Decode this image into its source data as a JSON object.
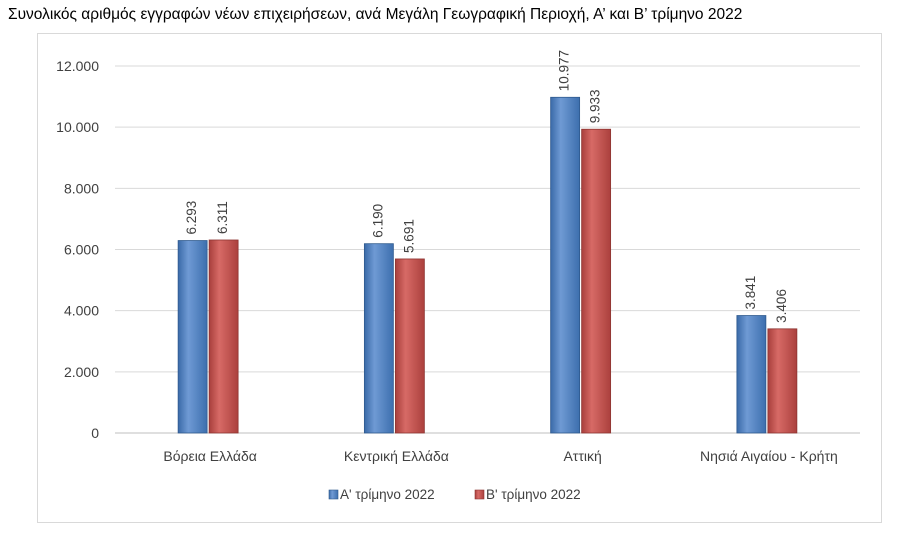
{
  "chart_data": {
    "type": "bar",
    "title": "Συνολικός αριθμός εγγραφών νέων επιχειρήσεων, ανά Μεγάλη Γεωγραφική Περιοχή, Α’ και Β’ τρίμηνο 2022",
    "categories": [
      "Βόρεια Ελλάδα",
      "Κεντρική Ελλάδα",
      "Αττική",
      "Νησιά Αιγαίου - Κρήτη"
    ],
    "series": [
      {
        "name": "Α' τρίμηνο 2022",
        "values": [
          6293,
          6190,
          10977,
          3841
        ],
        "labels": [
          "6.293",
          "6.190",
          "10.977",
          "3.841"
        ],
        "color": "#4f81bd"
      },
      {
        "name": "Β' τρίμηνο 2022",
        "values": [
          6311,
          5691,
          9933,
          3406
        ],
        "labels": [
          "6.311",
          "5.691",
          "9.933",
          "3.406"
        ],
        "color": "#c0504d"
      }
    ],
    "yticks": [
      0,
      2000,
      4000,
      6000,
      8000,
      10000,
      12000
    ],
    "ytick_labels": [
      "0",
      "2.000",
      "4.000",
      "6.000",
      "8.000",
      "10.000",
      "12.000"
    ],
    "ylim": [
      0,
      12000
    ],
    "grid": true,
    "legend": "bottom",
    "xlabel": "",
    "ylabel": ""
  }
}
